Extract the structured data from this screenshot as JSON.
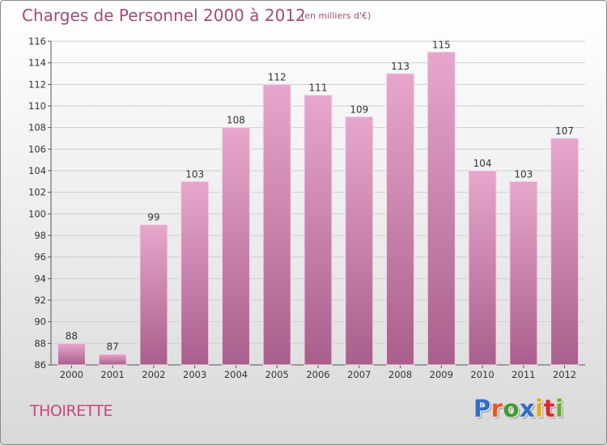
{
  "header": {
    "title": "Charges de Personnel 2000 à 2012",
    "unit": "(en milliers d'€)"
  },
  "footer": {
    "commune": "THOIRETTE",
    "brand_letters": [
      "P",
      "r",
      "o",
      "x",
      "i",
      "t",
      "i"
    ],
    "brand_colors": [
      "#2f6fc3",
      "#e6581d",
      "#3f9e2b",
      "#2f6fc3",
      "#e6ad17",
      "#d8292f",
      "#6aae29"
    ]
  },
  "colors": {
    "bar_top": "#e7a7cc",
    "bar_bottom": "#a95f8b",
    "label": "#333333",
    "grid": "#cfcfcf"
  },
  "chart_data": {
    "type": "bar",
    "categories": [
      "2000",
      "2001",
      "2002",
      "2003",
      "2004",
      "2005",
      "2006",
      "2007",
      "2008",
      "2009",
      "2010",
      "2011",
      "2012"
    ],
    "values": [
      88,
      87,
      99,
      103,
      108,
      112,
      111,
      109,
      113,
      115,
      104,
      103,
      107
    ],
    "ylim": [
      86,
      116
    ],
    "yticks": [
      86,
      88,
      90,
      92,
      94,
      96,
      98,
      100,
      102,
      104,
      106,
      108,
      110,
      112,
      114,
      116
    ],
    "grid": true
  }
}
